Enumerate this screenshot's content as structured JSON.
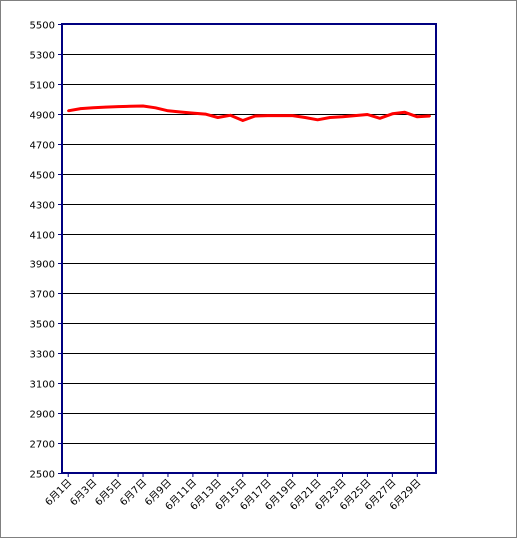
{
  "chart_data": {
    "type": "line",
    "title": "",
    "xlabel": "",
    "ylabel": "",
    "ylim": [
      2500,
      5500
    ],
    "y_ticks": [
      2500,
      2700,
      2900,
      3100,
      3300,
      3500,
      3700,
      3900,
      4100,
      4300,
      4500,
      4700,
      4900,
      5100,
      5300,
      5500
    ],
    "x_tick_labels": [
      "6月1日",
      "6月3日",
      "6月5日",
      "6月7日",
      "6月9日",
      "6月11日",
      "6月13日",
      "6月15日",
      "6月17日",
      "6月19日",
      "6月21日",
      "6月23日",
      "6月25日",
      "6月27日",
      "6月29日"
    ],
    "grid": true,
    "colors": {
      "line": "#ff0000",
      "plot_border": "#000080",
      "grid": "#000000"
    },
    "categories": [
      "6月1日",
      "6月2日",
      "6月3日",
      "6月4日",
      "6月5日",
      "6月6日",
      "6月7日",
      "6月8日",
      "6月9日",
      "6月10日",
      "6月11日",
      "6月12日",
      "6月13日",
      "6月14日",
      "6月15日",
      "6月16日",
      "6月17日",
      "6月18日",
      "6月19日",
      "6月20日",
      "6月21日",
      "6月22日",
      "6月23日",
      "6月24日",
      "6月25日",
      "6月26日",
      "6月27日",
      "6月28日",
      "6月29日",
      "6月30日"
    ],
    "series": [
      {
        "values": [
          4920,
          4935,
          4940,
          4945,
          4948,
          4950,
          4952,
          4940,
          4920,
          4912,
          4905,
          4898,
          4875,
          4890,
          4855,
          4885,
          4888,
          4888,
          4888,
          4875,
          4860,
          4875,
          4880,
          4888,
          4895,
          4870,
          4900,
          4910,
          4880,
          4885
        ]
      }
    ]
  }
}
